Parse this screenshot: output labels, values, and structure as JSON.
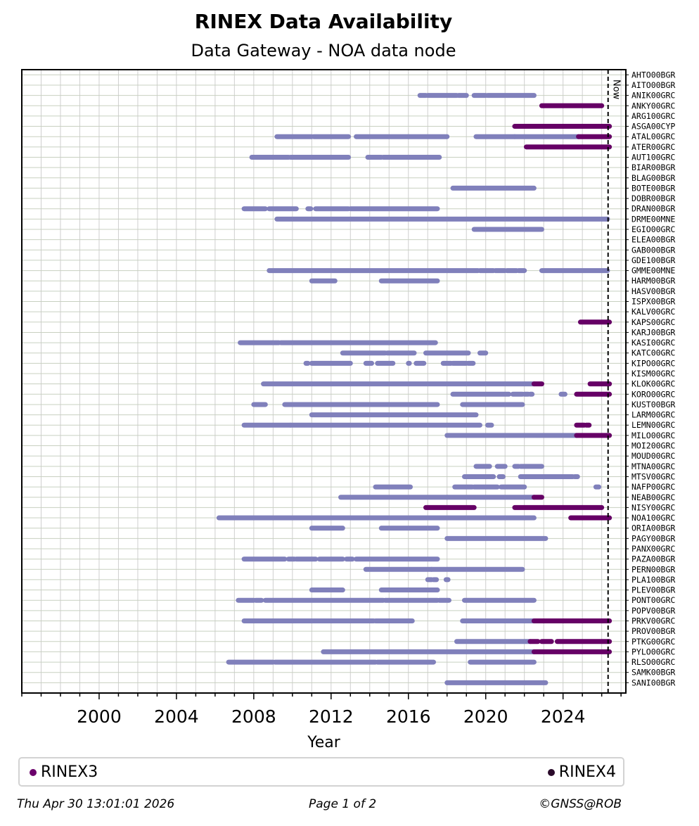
{
  "chart_data": {
    "type": "timeline",
    "title": "RINEX Data Availability",
    "subtitle": "Data Gateway - NOA data node",
    "xlabel": "Year",
    "xlim": [
      1996.0,
      2027.25
    ],
    "xticks": [
      2000,
      2004,
      2008,
      2012,
      2016,
      2020,
      2024
    ],
    "now_label": "Now",
    "now_x": 2026.33,
    "grid": true,
    "legend": [
      {
        "name": "RINEX3",
        "color": "#6b006b"
      },
      {
        "name": "RINEX4",
        "color": "#2a0a2a"
      }
    ],
    "colors": {
      "rinex2": "#8080bb",
      "rinex3": "#660066"
    },
    "stations": [
      {
        "name": "AHTO00BGR",
        "segments": []
      },
      {
        "name": "AITO00BGR",
        "segments": []
      },
      {
        "name": "ANIK00GRC",
        "segments": [
          [
            2016.6,
            2016.9,
            2
          ],
          [
            2017.0,
            2018.5,
            2
          ],
          [
            2018.6,
            2019.0,
            2
          ],
          [
            2019.4,
            2020.0,
            2
          ],
          [
            2020.1,
            2022.5,
            2
          ]
        ]
      },
      {
        "name": "ANKY00GRC",
        "segments": [
          [
            2022.9,
            2026.0,
            3
          ]
        ]
      },
      {
        "name": "ARG100GRC",
        "segments": []
      },
      {
        "name": "ASGA00CYP",
        "segments": [
          [
            2021.5,
            2026.4,
            3
          ]
        ]
      },
      {
        "name": "ATAL00GRC",
        "segments": [
          [
            2009.2,
            2011.0,
            2
          ],
          [
            2011.1,
            2012.9,
            2
          ],
          [
            2013.3,
            2016.0,
            2
          ],
          [
            2016.0,
            2018.0,
            2
          ],
          [
            2019.5,
            2021.5,
            2
          ],
          [
            2021.5,
            2024.8,
            2
          ],
          [
            2024.8,
            2026.4,
            3
          ]
        ]
      },
      {
        "name": "ATER00GRC",
        "segments": [
          [
            2022.1,
            2026.4,
            3
          ]
        ]
      },
      {
        "name": "AUT100GRC",
        "segments": [
          [
            2007.9,
            2009.8,
            2
          ],
          [
            2009.9,
            2012.9,
            2
          ],
          [
            2013.9,
            2014.6,
            2
          ],
          [
            2014.7,
            2017.6,
            2
          ]
        ]
      },
      {
        "name": "BIAR00BGR",
        "segments": []
      },
      {
        "name": "BLAG00BGR",
        "segments": []
      },
      {
        "name": "BOTE00BGR",
        "segments": [
          [
            2018.3,
            2022.5,
            2
          ]
        ]
      },
      {
        "name": "DOBR00BGR",
        "segments": []
      },
      {
        "name": "DRAN00BGR",
        "segments": [
          [
            2007.5,
            2008.6,
            2
          ],
          [
            2008.8,
            2010.2,
            2
          ],
          [
            2010.8,
            2010.95,
            2
          ],
          [
            2011.2,
            2012.9,
            2
          ],
          [
            2013.0,
            2017.5,
            2
          ]
        ]
      },
      {
        "name": "DRME00MNE",
        "segments": [
          [
            2009.2,
            2026.3,
            2
          ]
        ]
      },
      {
        "name": "EGIO00GRC",
        "segments": [
          [
            2019.4,
            2022.9,
            2
          ]
        ]
      },
      {
        "name": "ELEA00BGR",
        "segments": []
      },
      {
        "name": "GAB000BGR",
        "segments": []
      },
      {
        "name": "GDE100BGR",
        "segments": []
      },
      {
        "name": "GMME00MNE",
        "segments": [
          [
            2008.8,
            2019.6,
            2
          ],
          [
            2019.7,
            2020.4,
            2
          ],
          [
            2020.5,
            2021.0,
            2
          ],
          [
            2021.1,
            2021.6,
            2
          ],
          [
            2021.7,
            2022.0,
            2
          ],
          [
            2022.9,
            2026.3,
            2
          ]
        ]
      },
      {
        "name": "HARM00BGR",
        "segments": [
          [
            2011.0,
            2012.2,
            2
          ],
          [
            2014.6,
            2017.5,
            2
          ]
        ]
      },
      {
        "name": "HASV00BGR",
        "segments": []
      },
      {
        "name": "ISPX00BGR",
        "segments": []
      },
      {
        "name": "KALV00GRC",
        "segments": []
      },
      {
        "name": "KAPS00GRC",
        "segments": [
          [
            2024.9,
            2026.4,
            3
          ]
        ]
      },
      {
        "name": "KARJ00BGR",
        "segments": []
      },
      {
        "name": "KASI00GRC",
        "segments": [
          [
            2007.3,
            2009.3,
            2
          ],
          [
            2009.4,
            2017.4,
            2
          ]
        ]
      },
      {
        "name": "KATC00GRC",
        "segments": [
          [
            2012.6,
            2014.8,
            2
          ],
          [
            2014.9,
            2016.3,
            2
          ],
          [
            2016.9,
            2019.1,
            2
          ],
          [
            2019.7,
            2020.0,
            2
          ]
        ]
      },
      {
        "name": "KIPO00GRC",
        "segments": [
          [
            2010.7,
            2010.8,
            2
          ],
          [
            2011.0,
            2013.0,
            2
          ],
          [
            2013.8,
            2014.1,
            2
          ],
          [
            2014.4,
            2015.2,
            2
          ],
          [
            2016.0,
            2016.05,
            2
          ],
          [
            2016.4,
            2016.8,
            2
          ],
          [
            2017.8,
            2018.2,
            2
          ],
          [
            2018.3,
            2019.0,
            2
          ],
          [
            2019.1,
            2019.35,
            2
          ]
        ]
      },
      {
        "name": "KISM00GRC",
        "segments": []
      },
      {
        "name": "KLOK00GRC",
        "segments": [
          [
            2008.5,
            2022.5,
            2
          ],
          [
            2022.5,
            2022.9,
            3
          ],
          [
            2025.4,
            2026.4,
            3
          ]
        ]
      },
      {
        "name": "KORO00GRC",
        "segments": [
          [
            2018.3,
            2021.2,
            2
          ],
          [
            2021.4,
            2021.9,
            2
          ],
          [
            2022.0,
            2022.2,
            2
          ],
          [
            2022.3,
            2022.4,
            2
          ],
          [
            2023.9,
            2024.1,
            2
          ],
          [
            2024.7,
            2026.4,
            3
          ]
        ]
      },
      {
        "name": "KUST00BGR",
        "segments": [
          [
            2008.0,
            2008.6,
            2
          ],
          [
            2009.6,
            2011.1,
            2
          ],
          [
            2011.1,
            2017.5,
            2
          ],
          [
            2018.8,
            2021.9,
            2
          ]
        ]
      },
      {
        "name": "LARM00GRC",
        "segments": [
          [
            2011.0,
            2019.5,
            2
          ]
        ]
      },
      {
        "name": "LEMN00GRC",
        "segments": [
          [
            2007.5,
            2009.9,
            2
          ],
          [
            2009.9,
            2019.7,
            2
          ],
          [
            2020.1,
            2020.3,
            2
          ],
          [
            2024.7,
            2025.1,
            3
          ],
          [
            2025.2,
            2025.35,
            3
          ]
        ]
      },
      {
        "name": "MILO00GRC",
        "segments": [
          [
            2018.0,
            2024.7,
            2
          ],
          [
            2024.7,
            2026.4,
            3
          ]
        ]
      },
      {
        "name": "MOI200GRC",
        "segments": []
      },
      {
        "name": "MOUD00GRC",
        "segments": []
      },
      {
        "name": "MTNA00GRC",
        "segments": [
          [
            2019.5,
            2020.2,
            2
          ],
          [
            2020.6,
            2021.0,
            2
          ],
          [
            2021.5,
            2021.7,
            2
          ],
          [
            2021.8,
            2022.9,
            2
          ]
        ]
      },
      {
        "name": "MTSV00GRC",
        "segments": [
          [
            2018.9,
            2020.4,
            2
          ],
          [
            2020.7,
            2020.9,
            2
          ],
          [
            2021.8,
            2024.5,
            2
          ],
          [
            2024.6,
            2024.75,
            2
          ]
        ]
      },
      {
        "name": "NAFP00GRC",
        "segments": [
          [
            2014.3,
            2016.1,
            2
          ],
          [
            2018.4,
            2019.3,
            2
          ],
          [
            2019.4,
            2020.6,
            2
          ],
          [
            2020.8,
            2022.0,
            2
          ],
          [
            2025.7,
            2025.85,
            2
          ]
        ]
      },
      {
        "name": "NEAB00GRC",
        "segments": [
          [
            2012.5,
            2018.0,
            2
          ],
          [
            2018.0,
            2022.5,
            2
          ],
          [
            2022.5,
            2022.9,
            3
          ]
        ]
      },
      {
        "name": "NISY00GRC",
        "segments": [
          [
            2016.9,
            2019.4,
            3
          ],
          [
            2021.5,
            2026.0,
            3
          ]
        ]
      },
      {
        "name": "NOA100GRC",
        "segments": [
          [
            2006.2,
            2022.5,
            2
          ],
          [
            2024.4,
            2026.4,
            3
          ]
        ]
      },
      {
        "name": "ORIA00BGR",
        "segments": [
          [
            2011.0,
            2012.6,
            2
          ],
          [
            2014.6,
            2017.5,
            2
          ]
        ]
      },
      {
        "name": "PAGY00BGR",
        "segments": [
          [
            2018.0,
            2023.1,
            2
          ]
        ]
      },
      {
        "name": "PANX00GRC",
        "segments": []
      },
      {
        "name": "PAZA00BGR",
        "segments": [
          [
            2007.5,
            2009.6,
            2
          ],
          [
            2009.8,
            2010.1,
            2
          ],
          [
            2010.2,
            2011.2,
            2
          ],
          [
            2011.4,
            2012.6,
            2
          ],
          [
            2012.8,
            2013.1,
            2
          ],
          [
            2013.3,
            2017.5,
            2
          ]
        ]
      },
      {
        "name": "PERN00BGR",
        "segments": [
          [
            2013.8,
            2017.2,
            2
          ],
          [
            2017.2,
            2021.9,
            2
          ]
        ]
      },
      {
        "name": "PLA100BGR",
        "segments": [
          [
            2017.0,
            2017.2,
            2
          ],
          [
            2017.3,
            2017.45,
            2
          ],
          [
            2017.95,
            2018.05,
            2
          ]
        ]
      },
      {
        "name": "PLEV00BGR",
        "segments": [
          [
            2011.0,
            2012.6,
            2
          ],
          [
            2014.6,
            2017.5,
            2
          ]
        ]
      },
      {
        "name": "PONT00GRC",
        "segments": [
          [
            2007.2,
            2008.0,
            2
          ],
          [
            2008.1,
            2008.4,
            2
          ],
          [
            2008.6,
            2014.7,
            2
          ],
          [
            2014.8,
            2017.5,
            2
          ],
          [
            2017.6,
            2018.1,
            2
          ],
          [
            2018.9,
            2022.5,
            2
          ]
        ]
      },
      {
        "name": "POPV00BGR",
        "segments": []
      },
      {
        "name": "PRKV00GRC",
        "segments": [
          [
            2007.5,
            2009.9,
            2
          ],
          [
            2009.9,
            2014.2,
            2
          ],
          [
            2014.3,
            2016.2,
            2
          ],
          [
            2018.8,
            2022.5,
            2
          ],
          [
            2022.5,
            2026.4,
            3
          ]
        ]
      },
      {
        "name": "PROV00BGR",
        "segments": []
      },
      {
        "name": "PTKG00GRC",
        "segments": [
          [
            2018.5,
            2022.3,
            2
          ],
          [
            2022.3,
            2022.7,
            3
          ],
          [
            2022.9,
            2023.4,
            3
          ],
          [
            2023.7,
            2026.4,
            3
          ]
        ]
      },
      {
        "name": "PYLO00GRC",
        "segments": [
          [
            2011.6,
            2022.5,
            2
          ],
          [
            2022.5,
            2026.4,
            3
          ]
        ]
      },
      {
        "name": "RLSO00GRC",
        "segments": [
          [
            2006.7,
            2009.0,
            2
          ],
          [
            2009.1,
            2014.3,
            2
          ],
          [
            2014.4,
            2017.3,
            2
          ],
          [
            2019.2,
            2022.5,
            2
          ]
        ]
      },
      {
        "name": "SAMK00BGR",
        "segments": []
      },
      {
        "name": "SANI00BGR",
        "segments": [
          [
            2018.0,
            2023.1,
            2
          ]
        ]
      }
    ]
  },
  "footer": {
    "timestamp": "Thu Apr 30 13:01:01 2026",
    "page": "Page 1 of 2",
    "credit": "©GNSS@ROB"
  }
}
